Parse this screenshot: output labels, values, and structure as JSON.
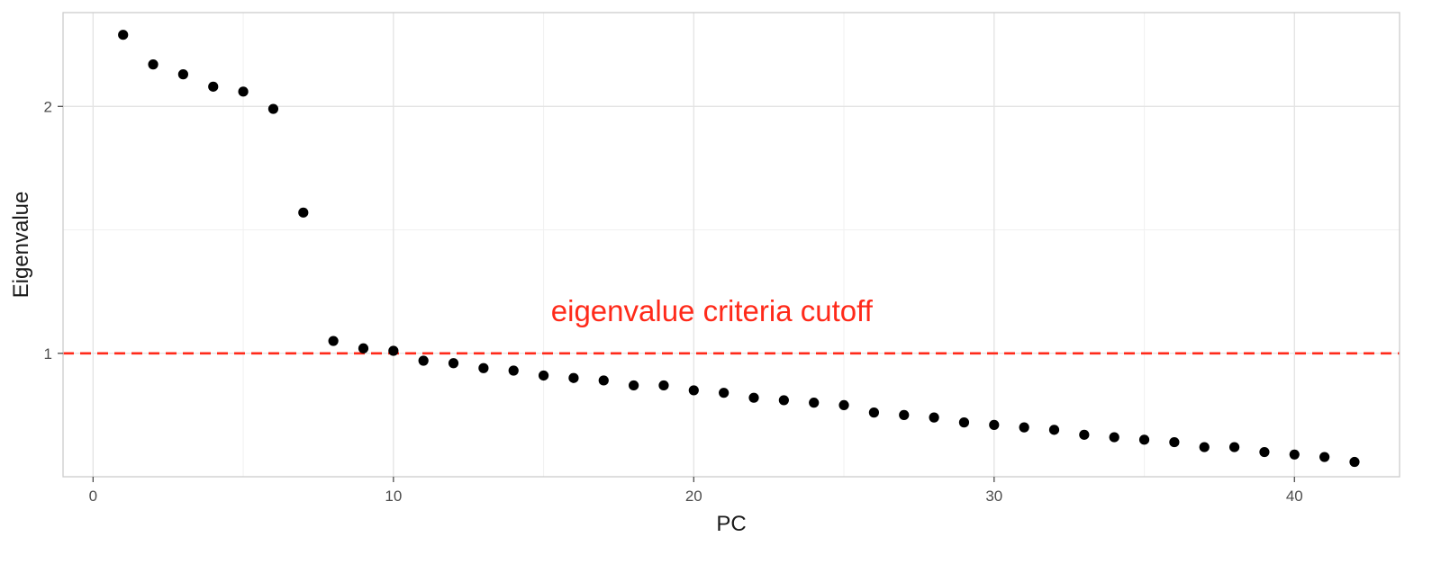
{
  "chart_data": {
    "type": "scatter",
    "title": "",
    "xlabel": "PC",
    "ylabel": "Eigenvalue",
    "xlim": [
      -1,
      43.5
    ],
    "ylim": [
      0.5,
      2.38
    ],
    "x_ticks": [
      0,
      10,
      20,
      30,
      40
    ],
    "y_ticks": [
      1,
      2
    ],
    "grid": true,
    "legend": "none",
    "point_color": "#000000",
    "series": [
      {
        "x": [
          1,
          2,
          3,
          4,
          5,
          6,
          7,
          8,
          9,
          10,
          11,
          12,
          13,
          14,
          15,
          16,
          17,
          18,
          19,
          20,
          21,
          22,
          23,
          24,
          25,
          26,
          27,
          28,
          29,
          30,
          31,
          32,
          33,
          34,
          35,
          36,
          37,
          38,
          39,
          40,
          41,
          42
        ],
        "y": [
          2.29,
          2.17,
          2.13,
          2.08,
          2.06,
          1.99,
          1.57,
          1.05,
          1.02,
          1.01,
          0.97,
          0.96,
          0.94,
          0.93,
          0.91,
          0.9,
          0.89,
          0.87,
          0.87,
          0.85,
          0.84,
          0.82,
          0.81,
          0.8,
          0.79,
          0.76,
          0.75,
          0.74,
          0.72,
          0.71,
          0.7,
          0.69,
          0.67,
          0.66,
          0.65,
          0.64,
          0.62,
          0.62,
          0.6,
          0.59,
          0.58,
          0.56
        ]
      }
    ],
    "reference_line": {
      "y": 1,
      "color": "#ff2a1a",
      "style": "dashed"
    },
    "annotation": {
      "text": "eigenvalue criteria cutoff",
      "x": 20.6,
      "y": 1.13,
      "color": "#ff2a1a"
    }
  }
}
